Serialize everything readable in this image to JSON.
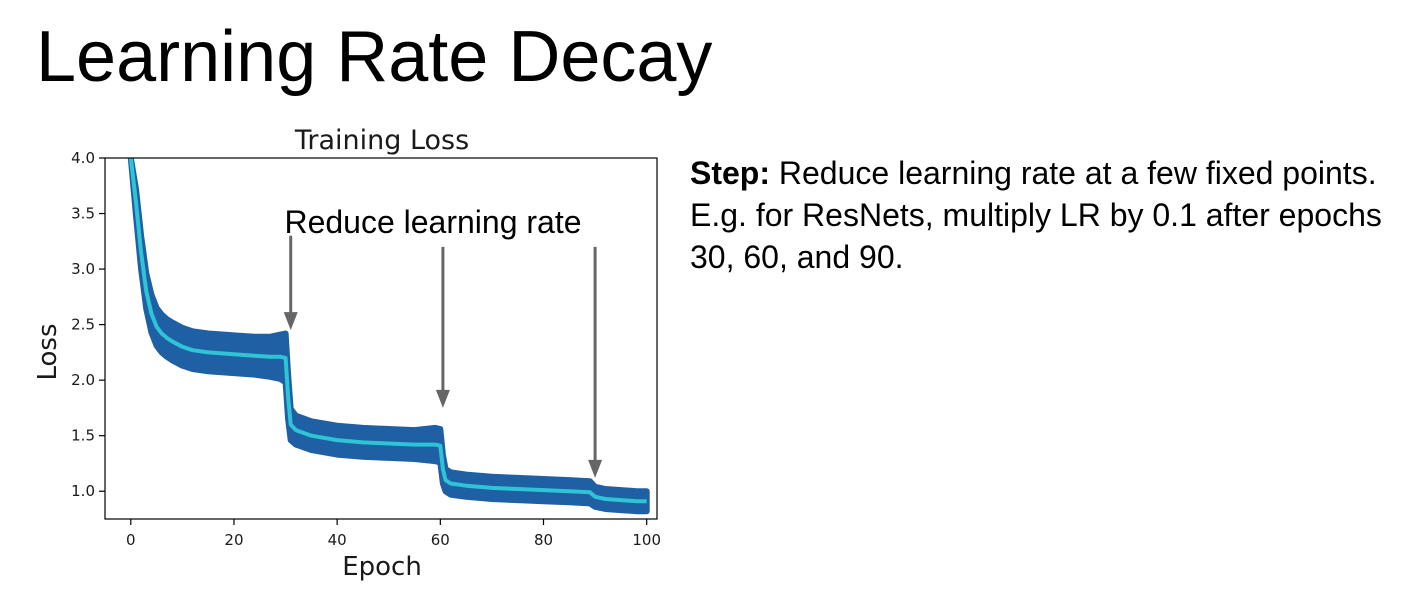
{
  "slide": {
    "title": "Learning Rate Decay",
    "body_lead": "Step:",
    "body_text": " Reduce learning rate at a few fixed points. E.g. for ResNets, multiply LR by 0.1 after epochs 30, 60, and 90."
  },
  "colors": {
    "band": "#1f5fa4",
    "mean_line": "#2ec4d6",
    "arrow": "#666666",
    "axis": "#000000"
  },
  "chart_data": {
    "type": "line",
    "title": "Training Loss",
    "xlabel": "Epoch",
    "ylabel": "Loss",
    "xlim": [
      -5,
      102
    ],
    "ylim": [
      0.75,
      4.0
    ],
    "xticks": [
      0,
      20,
      40,
      60,
      80,
      100
    ],
    "xtick_labels": [
      "0",
      "20",
      "40",
      "60",
      "80",
      "100"
    ],
    "yticks": [
      1.0,
      1.5,
      2.0,
      2.5,
      3.0,
      3.5,
      4.0
    ],
    "ytick_labels": [
      "1.0",
      "1.5",
      "2.0",
      "2.5",
      "3.0",
      "3.5",
      "4.0"
    ],
    "grid": false,
    "series": [
      {
        "name": "",
        "x": [
          0,
          1,
          2,
          3,
          4,
          5,
          6,
          7,
          8,
          10,
          12,
          15,
          18,
          21,
          24,
          27,
          29,
          30,
          30.5,
          31,
          32,
          35,
          40,
          45,
          50,
          55,
          59,
          60,
          60.5,
          61,
          62,
          65,
          70,
          75,
          80,
          85,
          89,
          90,
          92,
          95,
          98,
          100
        ],
        "y": [
          4.0,
          3.6,
          3.15,
          2.8,
          2.6,
          2.48,
          2.42,
          2.38,
          2.35,
          2.3,
          2.27,
          2.25,
          2.24,
          2.23,
          2.22,
          2.21,
          2.21,
          2.2,
          1.85,
          1.6,
          1.55,
          1.5,
          1.46,
          1.44,
          1.43,
          1.42,
          1.42,
          1.41,
          1.2,
          1.1,
          1.07,
          1.05,
          1.03,
          1.02,
          1.01,
          1.0,
          0.99,
          0.95,
          0.93,
          0.92,
          0.91,
          0.91
        ],
        "spread": [
          0.0,
          0.12,
          0.15,
          0.16,
          0.17,
          0.17,
          0.17,
          0.17,
          0.17,
          0.17,
          0.17,
          0.17,
          0.17,
          0.17,
          0.17,
          0.18,
          0.2,
          0.22,
          0.2,
          0.14,
          0.13,
          0.13,
          0.13,
          0.13,
          0.13,
          0.13,
          0.15,
          0.15,
          0.13,
          0.1,
          0.1,
          0.1,
          0.1,
          0.1,
          0.1,
          0.1,
          0.1,
          0.09,
          0.09,
          0.09,
          0.09,
          0.09
        ]
      }
    ],
    "annotations": [
      {
        "text": "Reduce learning rate",
        "arrows": [
          {
            "x": 31,
            "y_top": 3.3,
            "y_tip": 2.45
          },
          {
            "x": 60.5,
            "y_top": 3.2,
            "y_tip": 1.75
          },
          {
            "x": 90,
            "y_top": 3.2,
            "y_tip": 1.12
          }
        ]
      }
    ]
  }
}
